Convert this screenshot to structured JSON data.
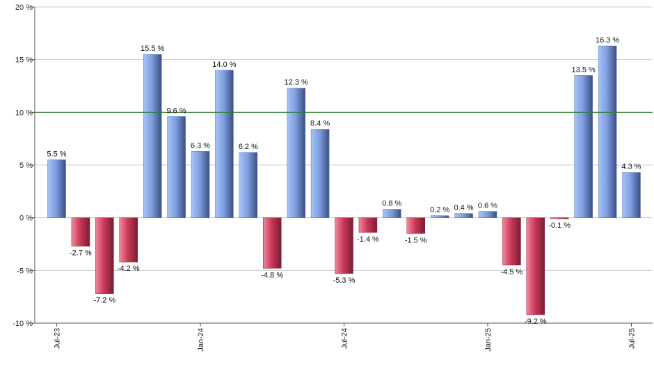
{
  "chart_data": {
    "type": "bar",
    "unit": "%",
    "ylim": [
      -10,
      20
    ],
    "yticks": [
      "20 %",
      "15 %",
      "10 %",
      "5 %",
      "0 %",
      "-5 %",
      "-10 %"
    ],
    "ytick_values": [
      20,
      15,
      10,
      5,
      0,
      -5,
      -10
    ],
    "reference_line": 10,
    "grid": true,
    "values": [
      5.5,
      -2.7,
      -7.2,
      -4.2,
      15.5,
      9.6,
      6.3,
      14.0,
      6.2,
      -4.8,
      12.3,
      8.4,
      -5.3,
      -1.4,
      0.8,
      -1.5,
      0.2,
      0.4,
      0.6,
      -4.5,
      -9.2,
      -0.1,
      13.5,
      16.3,
      4.3
    ],
    "data_labels": [
      "5.5 %",
      "-2.7 %",
      "-7.2 %",
      "-4.2 %",
      "15.5 %",
      "9.6 %",
      "6.3 %",
      "14.0 %",
      "6.2 %",
      "-4.8 %",
      "12.3 %",
      "8.4 %",
      "-5.3 %",
      "-1.4 %",
      "0.8 %",
      "-1.5 %",
      "0.2 %",
      "0.4 %",
      "0.6 %",
      "-4.5 %",
      "-9.2 %",
      "-0.1 %",
      "13.5 %",
      "16.3 %",
      "4.3 %"
    ],
    "xtick_labels": [
      "Jul-23",
      "Jan-24",
      "Jul-24",
      "Jan-25",
      "Jul-25"
    ],
    "xtick_indices": [
      0,
      6,
      12,
      18,
      24
    ],
    "colors": {
      "positive": "#7f9fe0",
      "negative": "#c03050",
      "reference_line": "#2e7d32",
      "grid": "#cccccc",
      "axis": "#555555"
    }
  }
}
